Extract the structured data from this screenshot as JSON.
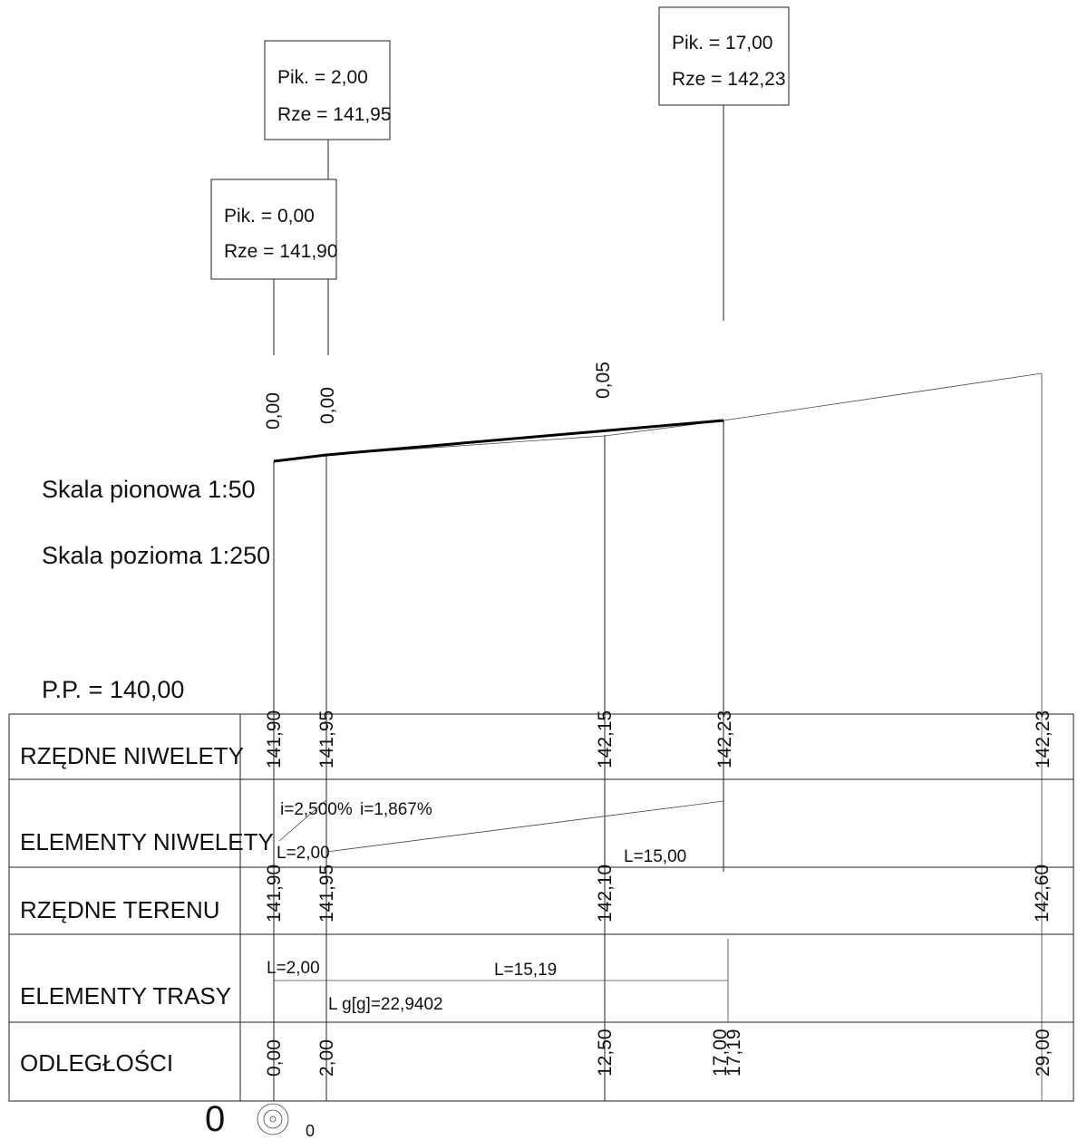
{
  "callouts": [
    {
      "pik": "Pik. = 2,00",
      "rze": "Rze = 141,95"
    },
    {
      "pik": "Pik. = 0,00",
      "rze": "Rze = 141,90"
    },
    {
      "pik": "Pik. = 17,00",
      "rze": "Rze = 142,23"
    }
  ],
  "depths": [
    "0,00",
    "0,00",
    "0,05"
  ],
  "scales": {
    "vertical": "Skala pionowa  1:50",
    "horizontal": "Skala pozioma  1:250",
    "reference": "P.P.  =  140,00"
  },
  "rows": {
    "niwelety_label": "RZĘDNE NIWELETY",
    "elementy_niwelety_label": "ELEMENTY NIWELETY",
    "terenu_label": "RZĘDNE TERENU",
    "trasy_label": "ELEMENTY TRASY",
    "odleglosci_label": "ODLEGŁOŚCI"
  },
  "rzedne_niwelety": [
    "141,90",
    "141,95",
    "142,15",
    "142,23",
    "142,23"
  ],
  "elementy_niwelety": {
    "slope1": "i=2,500%",
    "slope2": "i=1,867%",
    "len1": "L=2,00",
    "len2": "L=15,00"
  },
  "rzedne_terenu": [
    "141,90",
    "141,95",
    "142,10",
    "142,60"
  ],
  "elementy_trasy": {
    "len1": "L=2,00",
    "len2": "L=15,19",
    "curve": "L g[g]=22,9402"
  },
  "odleglosci": [
    "0,00",
    "2,00",
    "12,50",
    "17,00",
    "17,19",
    "29,00"
  ],
  "footer": {
    "big_zero": "0",
    "small_zero": "0"
  }
}
